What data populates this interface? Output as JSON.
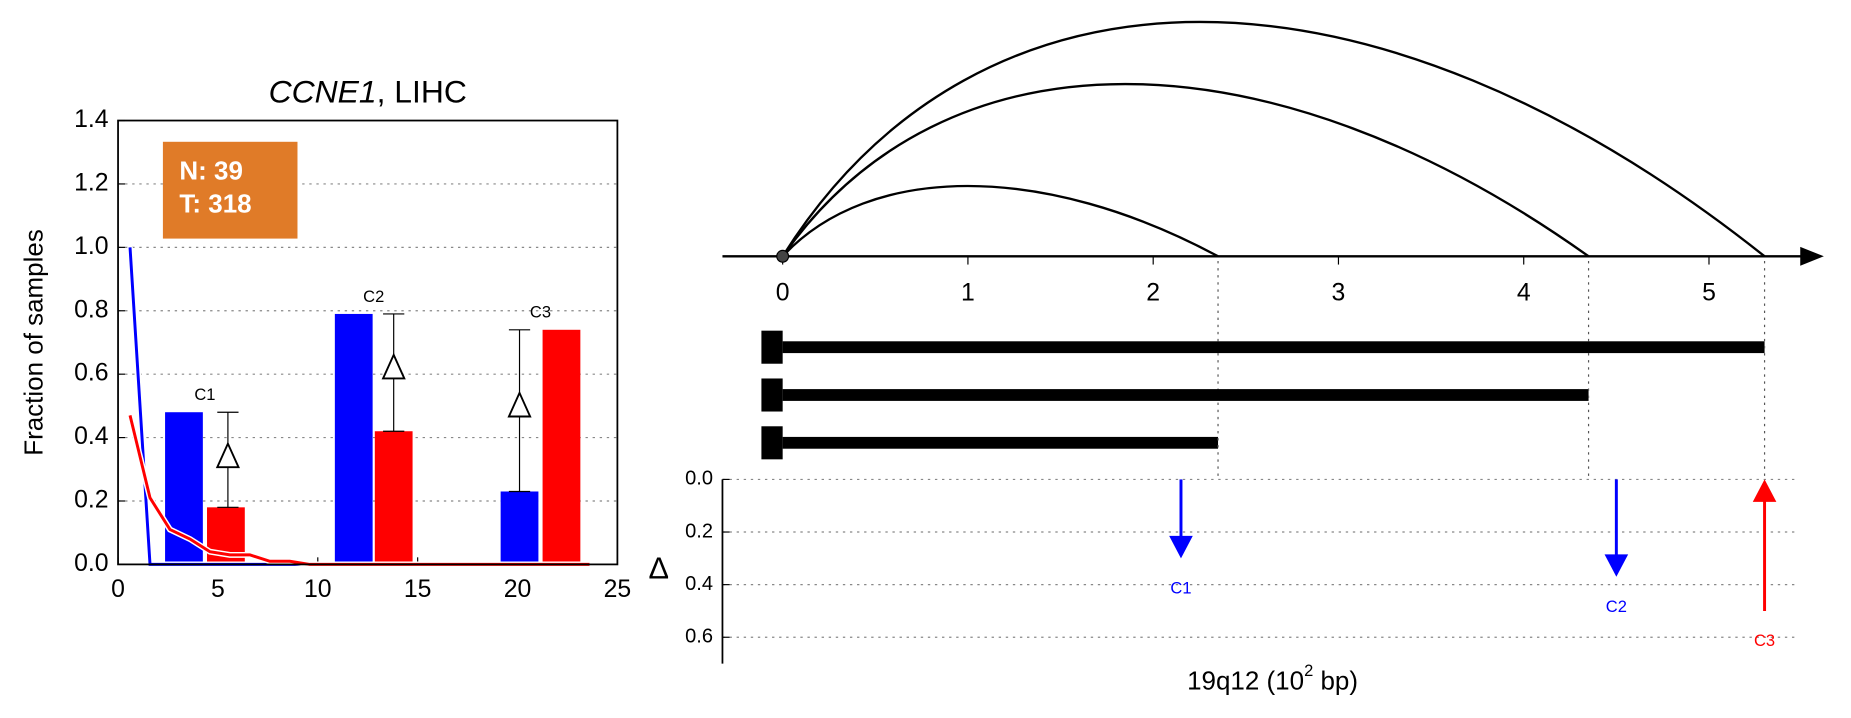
{
  "chart_data": [
    {
      "type": "bar",
      "title": [
        "CCNE1",
        ", LIHC"
      ],
      "ylabel": "Fraction of samples",
      "xlim": [
        0,
        25
      ],
      "xticks": [
        0,
        5,
        10,
        15,
        20,
        25
      ],
      "ylim": [
        0,
        1.4
      ],
      "yticks": [
        {
          "value": 0,
          "label": "0.0"
        },
        {
          "value": 0.2,
          "label": "0.2"
        },
        {
          "value": 0.4,
          "label": "0.4"
        },
        {
          "value": 0.6,
          "label": "0.6"
        },
        {
          "value": 0.8,
          "label": "0.8"
        },
        {
          "value": 1.0,
          "label": "1.0"
        },
        {
          "value": 1.2,
          "label": "1.2"
        },
        {
          "value": 1.4,
          "label": "1.4"
        }
      ],
      "grid": true,
      "annotation": {
        "lines": [
          "N: 39",
          "T: 318"
        ],
        "color": "#e07b28"
      },
      "group_labels": [
        "C1",
        "C2",
        "C3"
      ],
      "bars": [
        {
          "color": "#0000ff",
          "x": [
            3.3,
            11.8,
            20.1
          ],
          "values": [
            0.48,
            0.79,
            0.23
          ]
        },
        {
          "color": "#ff0000",
          "x": [
            5.4,
            13.8,
            22.2
          ],
          "values": [
            0.18,
            0.42,
            0.74
          ]
        }
      ],
      "deltas": {
        "x": [
          5.5,
          13.8,
          20.1
        ],
        "values": [
          0.34,
          0.62,
          0.5
        ],
        "low": [
          0.18,
          0.42,
          0.23
        ],
        "high": [
          0.48,
          0.79,
          0.74
        ]
      },
      "lines": [
        {
          "color": "#0000ff",
          "x": [
            0.6,
            1.6,
            2.6,
            3.6,
            4.6,
            5.6,
            6.6,
            7.6,
            8.6,
            9.6,
            10.6,
            11.6,
            12.6,
            13.6,
            14.6,
            15.6,
            16.6,
            17.6,
            18.6,
            19.6,
            20.6,
            21.6,
            22.6,
            23.6
          ],
          "values": [
            1.0,
            0,
            0,
            0,
            0,
            0,
            0,
            0,
            0,
            0,
            0,
            0,
            0,
            0,
            0,
            0,
            0,
            0,
            0,
            0,
            0,
            0,
            0,
            0
          ]
        },
        {
          "color": "#ff0000",
          "x": [
            0.6,
            1.6,
            2.6,
            3.6,
            4.6,
            5.6,
            6.6,
            7.6,
            8.6,
            9.6,
            10.6,
            11.6,
            12.6,
            13.6,
            14.6,
            15.6,
            16.6,
            17.6,
            18.6,
            19.6,
            20.6,
            21.6,
            22.6,
            23.6
          ],
          "values": [
            0.47,
            0.21,
            0.11,
            0.08,
            0.04,
            0.03,
            0.03,
            0.01,
            0.01,
            0,
            0,
            0,
            0,
            0,
            0,
            0,
            0,
            0,
            0,
            0,
            0,
            0,
            0,
            0
          ]
        }
      ]
    },
    {
      "type": "arc",
      "xlabel": [
        "19q12 (10",
        "2",
        " bp)"
      ],
      "xlim": [
        0,
        5.62
      ],
      "xticks": [
        0,
        1,
        2,
        3,
        4,
        5
      ],
      "breakpoints": [
        2.35,
        4.35,
        5.3
      ],
      "delta_panel": {
        "ylabel": "Δ",
        "ylim": [
          0,
          0.7
        ],
        "yticks": [
          {
            "value": 0,
            "label": "0.0"
          },
          {
            "value": 0.2,
            "label": "0.2"
          },
          {
            "value": 0.4,
            "label": "0.4"
          },
          {
            "value": 0.6,
            "label": "0.6"
          }
        ],
        "grid": true,
        "arrows": {
          "labels": [
            "C1",
            "C2",
            "C3"
          ],
          "x": [
            2.15,
            4.5,
            5.3
          ],
          "values": [
            0.3,
            0.37,
            0.5
          ],
          "colors": [
            "#0000ff",
            "#0000ff",
            "#ff0000"
          ],
          "direction": [
            "down",
            "down",
            "up"
          ]
        }
      }
    }
  ]
}
